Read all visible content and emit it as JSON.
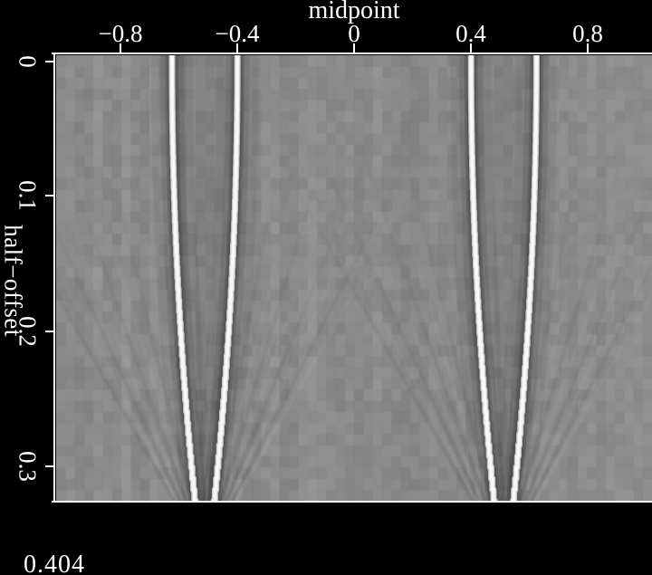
{
  "figure": {
    "corner_label": "0.404",
    "text_color": "#ffffff",
    "frame_color": "#ffffff",
    "background": "#000000"
  },
  "chart_data": {
    "type": "heatmap",
    "title": "",
    "xlabel": "midpoint",
    "ylabel": "half−offset",
    "annotation_bottom_left": "0.404",
    "colormap": "grayscale",
    "background_gray": "#8c8c8c",
    "bright_curve_color": "#f8f8f8",
    "dark_flank_color": "#4a4a4a",
    "xlim": [
      -1.02,
      1.03
    ],
    "ylim": [
      0,
      0.324
    ],
    "x_ticks": [
      -0.8,
      -0.4,
      0,
      0.4,
      0.8
    ],
    "x_tick_labels": [
      "−0.8",
      "−0.4",
      "0",
      "0.4",
      "0.8"
    ],
    "y_ticks": [
      0,
      0.1,
      0.2,
      0.3
    ],
    "y_tick_labels": [
      "0",
      "0.1",
      "0.2",
      "0.3"
    ],
    "grid": false,
    "legend": false,
    "description": "Grayscale seismic panel: two mirrored pairs of bright hyperbola-like events converging with depth, with dark flanks and faint fan-shaped aliasing streaks",
    "events": [
      {
        "name": "left-pair",
        "center_midpoint": -0.512
      },
      {
        "name": "right-pair",
        "center_midpoint": 0.512
      }
    ],
    "curve_model": {
      "half_separation_at_h0": 0.112,
      "quadratic_coeff": 0.75
    },
    "curves": {
      "h": [
        0,
        0.04,
        0.08,
        0.12,
        0.16,
        0.2,
        0.24,
        0.28,
        0.32
      ],
      "left_outer": [
        -0.624,
        -0.623,
        -0.619,
        -0.613,
        -0.605,
        -0.594,
        -0.581,
        -0.565,
        -0.547
      ],
      "left_inner": [
        -0.4,
        -0.401,
        -0.405,
        -0.411,
        -0.419,
        -0.43,
        -0.443,
        -0.459,
        -0.477
      ],
      "right_inner": [
        0.4,
        0.401,
        0.405,
        0.411,
        0.419,
        0.43,
        0.443,
        0.459,
        0.477
      ],
      "right_outer": [
        0.624,
        0.623,
        0.619,
        0.613,
        0.605,
        0.594,
        0.581,
        0.565,
        0.547
      ]
    }
  }
}
